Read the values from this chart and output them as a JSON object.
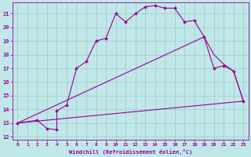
{
  "xlabel": "Windchill (Refroidissement éolien,°C)",
  "background_color": "#c0e8e8",
  "grid_color": "#a0c8c8",
  "line_color": "#990099",
  "xlim": [
    -0.5,
    23.5
  ],
  "ylim": [
    11.8,
    21.8
  ],
  "yticks": [
    12,
    13,
    14,
    15,
    16,
    17,
    18,
    19,
    20,
    21
  ],
  "xticks": [
    0,
    1,
    2,
    3,
    4,
    5,
    6,
    7,
    8,
    9,
    10,
    11,
    12,
    13,
    14,
    15,
    16,
    17,
    18,
    19,
    20,
    21,
    22,
    23
  ],
  "line1_x": [
    0,
    2,
    3,
    4,
    4,
    5,
    6,
    7,
    8,
    9,
    10,
    11,
    12,
    13,
    14,
    15,
    16,
    17,
    18,
    19,
    20,
    21,
    22,
    23
  ],
  "line1_y": [
    13.0,
    13.2,
    12.6,
    12.5,
    13.9,
    14.3,
    17.0,
    17.5,
    19.0,
    19.2,
    21.0,
    20.4,
    21.0,
    21.5,
    21.6,
    21.4,
    21.4,
    20.4,
    20.5,
    19.3,
    17.0,
    17.2,
    16.8,
    14.6
  ],
  "line2_x": [
    0,
    19,
    20,
    21,
    22,
    23
  ],
  "line2_y": [
    13.0,
    19.3,
    18.0,
    17.3,
    16.8,
    14.6
  ],
  "line3_x": [
    0,
    23
  ],
  "line3_y": [
    13.0,
    14.6
  ]
}
